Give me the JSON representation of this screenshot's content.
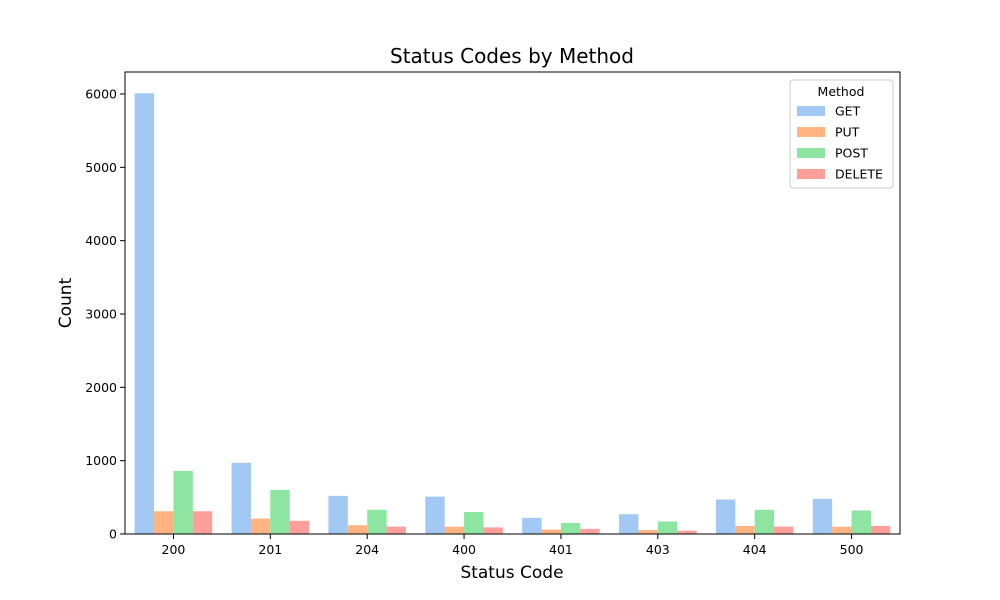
{
  "chart_data": {
    "type": "bar",
    "title": "Status Codes by Method",
    "xlabel": "Status Code",
    "ylabel": "Count",
    "categories": [
      "200",
      "201",
      "204",
      "400",
      "401",
      "403",
      "404",
      "500"
    ],
    "ylim": [
      0,
      6300
    ],
    "yticks": [
      0,
      1000,
      2000,
      3000,
      4000,
      5000,
      6000
    ],
    "grid": false,
    "legend": {
      "title": "Method",
      "placement": "top-right"
    },
    "series": [
      {
        "name": "GET",
        "color": "#a1c9f4",
        "values": [
          6010,
          970,
          520,
          510,
          220,
          270,
          470,
          480
        ]
      },
      {
        "name": "PUT",
        "color": "#ffb482",
        "values": [
          310,
          210,
          120,
          100,
          60,
          55,
          110,
          100
        ]
      },
      {
        "name": "POST",
        "color": "#8de5a1",
        "values": [
          860,
          600,
          330,
          300,
          150,
          170,
          330,
          320
        ]
      },
      {
        "name": "DELETE",
        "color": "#ff9f9b",
        "values": [
          310,
          180,
          100,
          90,
          70,
          45,
          100,
          110
        ]
      }
    ]
  }
}
